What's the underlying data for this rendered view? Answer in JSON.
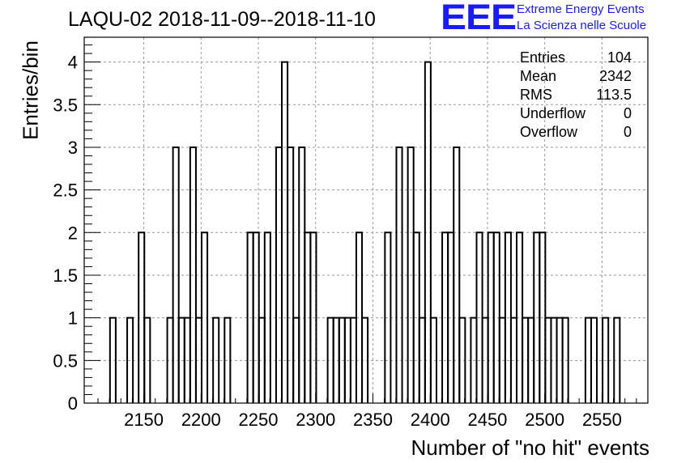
{
  "title": "LAQU-02 2018-11-09--2018-11-10",
  "logo": {
    "mark": "EEE",
    "line1": "Extreme Energy Events",
    "line2": "La Scienza nelle Scuole",
    "color": "#1a1aff"
  },
  "stats": [
    {
      "label": "Entries",
      "value": "104"
    },
    {
      "label": "Mean",
      "value": "2342"
    },
    {
      "label": "RMS",
      "value": "113.5"
    },
    {
      "label": "Underflow",
      "value": "0"
    },
    {
      "label": "Overflow",
      "value": "0"
    }
  ],
  "chart_data": {
    "type": "bar",
    "histogram": true,
    "title": "LAQU-02 2018-11-09--2018-11-10",
    "xlabel": "Number of \"no hit\" events",
    "ylabel": "Entries/bin",
    "xlim": [
      2098,
      2590
    ],
    "ylim": [
      0,
      4.3
    ],
    "bin_width": 5,
    "grid": true,
    "xticks": [
      2150,
      2200,
      2250,
      2300,
      2350,
      2400,
      2450,
      2500,
      2550
    ],
    "yticks": [
      "0",
      "0.5",
      "1",
      "1.5",
      "2",
      "2.5",
      "3",
      "3.5",
      "4"
    ],
    "bins": [
      {
        "x": 2123,
        "y": 1
      },
      {
        "x": 2138,
        "y": 1
      },
      {
        "x": 2148,
        "y": 2
      },
      {
        "x": 2153,
        "y": 1
      },
      {
        "x": 2173,
        "y": 1
      },
      {
        "x": 2178,
        "y": 3
      },
      {
        "x": 2183,
        "y": 1
      },
      {
        "x": 2188,
        "y": 1
      },
      {
        "x": 2193,
        "y": 3
      },
      {
        "x": 2198,
        "y": 1
      },
      {
        "x": 2203,
        "y": 2
      },
      {
        "x": 2213,
        "y": 1
      },
      {
        "x": 2223,
        "y": 1
      },
      {
        "x": 2243,
        "y": 2
      },
      {
        "x": 2248,
        "y": 2
      },
      {
        "x": 2253,
        "y": 1
      },
      {
        "x": 2258,
        "y": 2
      },
      {
        "x": 2268,
        "y": 3
      },
      {
        "x": 2273,
        "y": 4
      },
      {
        "x": 2278,
        "y": 3
      },
      {
        "x": 2283,
        "y": 1
      },
      {
        "x": 2288,
        "y": 3
      },
      {
        "x": 2293,
        "y": 2
      },
      {
        "x": 2298,
        "y": 2
      },
      {
        "x": 2313,
        "y": 1
      },
      {
        "x": 2318,
        "y": 1
      },
      {
        "x": 2323,
        "y": 1
      },
      {
        "x": 2328,
        "y": 1
      },
      {
        "x": 2333,
        "y": 1
      },
      {
        "x": 2338,
        "y": 2
      },
      {
        "x": 2343,
        "y": 1
      },
      {
        "x": 2363,
        "y": 2
      },
      {
        "x": 2373,
        "y": 3
      },
      {
        "x": 2383,
        "y": 3
      },
      {
        "x": 2388,
        "y": 2
      },
      {
        "x": 2393,
        "y": 1
      },
      {
        "x": 2398,
        "y": 4
      },
      {
        "x": 2403,
        "y": 1
      },
      {
        "x": 2413,
        "y": 2
      },
      {
        "x": 2418,
        "y": 2
      },
      {
        "x": 2423,
        "y": 3
      },
      {
        "x": 2428,
        "y": 1
      },
      {
        "x": 2438,
        "y": 1
      },
      {
        "x": 2443,
        "y": 2
      },
      {
        "x": 2448,
        "y": 1
      },
      {
        "x": 2453,
        "y": 2
      },
      {
        "x": 2458,
        "y": 2
      },
      {
        "x": 2463,
        "y": 1
      },
      {
        "x": 2468,
        "y": 2
      },
      {
        "x": 2473,
        "y": 1
      },
      {
        "x": 2478,
        "y": 2
      },
      {
        "x": 2483,
        "y": 1
      },
      {
        "x": 2488,
        "y": 1
      },
      {
        "x": 2493,
        "y": 2
      },
      {
        "x": 2498,
        "y": 2
      },
      {
        "x": 2503,
        "y": 1
      },
      {
        "x": 2508,
        "y": 1
      },
      {
        "x": 2513,
        "y": 1
      },
      {
        "x": 2518,
        "y": 1
      },
      {
        "x": 2538,
        "y": 1
      },
      {
        "x": 2543,
        "y": 1
      },
      {
        "x": 2553,
        "y": 1
      },
      {
        "x": 2563,
        "y": 1
      }
    ]
  }
}
